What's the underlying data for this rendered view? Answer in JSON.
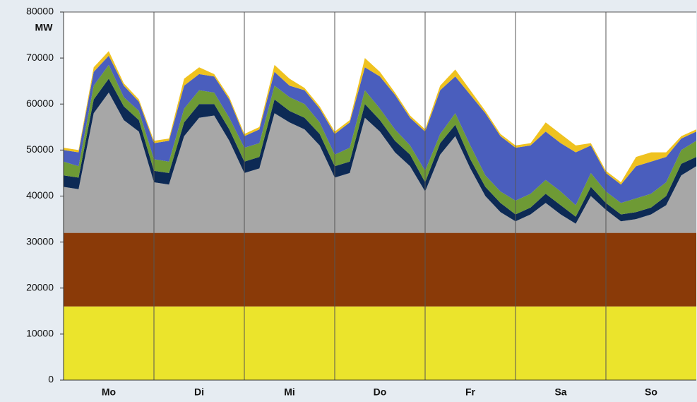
{
  "chart_data": {
    "type": "stacked_area",
    "y_unit": "MW",
    "x": [
      0,
      4,
      8,
      12,
      16,
      20,
      24,
      28,
      32,
      36,
      40,
      44,
      48,
      52,
      56,
      60,
      64,
      68,
      72,
      76,
      80,
      84,
      88,
      92,
      96,
      100,
      104,
      108,
      112,
      116,
      120,
      124,
      128,
      132,
      136,
      140,
      144,
      148,
      152,
      156,
      160,
      164,
      168
    ],
    "xlim": [
      0,
      168
    ],
    "xticks": [
      {
        "value": 12,
        "label": "Mo"
      },
      {
        "value": 36,
        "label": "Di"
      },
      {
        "value": 60,
        "label": "Mi"
      },
      {
        "value": 84,
        "label": "Do"
      },
      {
        "value": 108,
        "label": "Fr"
      },
      {
        "value": 132,
        "label": "Sa"
      },
      {
        "value": 156,
        "label": "So"
      }
    ],
    "ylim": [
      0,
      80000
    ],
    "yticks": [
      0,
      10000,
      20000,
      30000,
      40000,
      50000,
      60000,
      70000,
      80000
    ],
    "grid": true,
    "series": [
      {
        "color": "#ebe42c",
        "values": [
          16000,
          16000,
          16000,
          16000,
          16000,
          16000,
          16000,
          16000,
          16000,
          16000,
          16000,
          16000,
          16000,
          16000,
          16000,
          16000,
          16000,
          16000,
          16000,
          16000,
          16000,
          16000,
          16000,
          16000,
          16000,
          16000,
          16000,
          16000,
          16000,
          16000,
          16000,
          16000,
          16000,
          16000,
          16000,
          16000,
          16000,
          16000,
          16000,
          16000,
          16000,
          16000,
          16000
        ]
      },
      {
        "color": "#8a3a08",
        "values": [
          16000,
          16000,
          16000,
          16000,
          16000,
          16000,
          16000,
          16000,
          16000,
          16000,
          16000,
          16000,
          16000,
          16000,
          16000,
          16000,
          16000,
          16000,
          16000,
          16000,
          16000,
          16000,
          16000,
          16000,
          16000,
          16000,
          16000,
          16000,
          16000,
          16000,
          16000,
          16000,
          16000,
          16000,
          16000,
          16000,
          16000,
          16000,
          16000,
          16000,
          16000,
          16000,
          16000
        ]
      },
      {
        "color": "#a7a7a7",
        "values": [
          10000,
          9500,
          26000,
          30500,
          24500,
          22000,
          11000,
          10500,
          21000,
          25000,
          25500,
          20000,
          13000,
          14000,
          26000,
          24000,
          22500,
          19000,
          12000,
          13000,
          25000,
          22000,
          17500,
          14500,
          9000,
          17000,
          21000,
          14000,
          8000,
          4500,
          2500,
          4000,
          6500,
          4000,
          2000,
          8000,
          5000,
          2500,
          3000,
          4000,
          6000,
          12500,
          14500
        ]
      },
      {
        "color": "#0d2a55",
        "values": [
          2500,
          2500,
          3000,
          3000,
          3000,
          2500,
          2500,
          2500,
          3000,
          3000,
          2500,
          2500,
          2500,
          2500,
          3000,
          2500,
          2500,
          2500,
          2500,
          2500,
          3000,
          2500,
          2500,
          2500,
          2000,
          2500,
          2500,
          2000,
          2000,
          2000,
          1500,
          1500,
          2000,
          2000,
          1500,
          2000,
          1500,
          1500,
          1500,
          1500,
          2000,
          2500,
          2000
        ]
      },
      {
        "color": "#6e9a35",
        "values": [
          3000,
          2500,
          3000,
          3000,
          2000,
          2000,
          2500,
          2500,
          3000,
          3000,
          2500,
          2500,
          3000,
          3000,
          3000,
          3000,
          3000,
          2500,
          2500,
          3000,
          3000,
          2500,
          2500,
          2000,
          2500,
          2000,
          2500,
          3000,
          2500,
          2500,
          3000,
          3000,
          3000,
          3000,
          2500,
          3000,
          2500,
          2500,
          3000,
          3000,
          3000,
          3000,
          3500
        ]
      },
      {
        "color": "#4a5ebd",
        "values": [
          2500,
          3000,
          3000,
          2000,
          2500,
          2000,
          3500,
          4500,
          5000,
          3500,
          3500,
          4000,
          2500,
          3000,
          3000,
          2500,
          3000,
          3000,
          4500,
          5500,
          5000,
          7000,
          7500,
          6000,
          8500,
          9500,
          8000,
          11000,
          13500,
          12000,
          11500,
          10500,
          10500,
          10500,
          11500,
          6000,
          4000,
          4000,
          7000,
          7000,
          5500,
          2500,
          2000
        ]
      },
      {
        "color": "#efc21f",
        "values": [
          500,
          500,
          1000,
          1000,
          500,
          500,
          500,
          500,
          1500,
          1500,
          500,
          500,
          500,
          500,
          1500,
          1500,
          500,
          500,
          500,
          500,
          2000,
          1000,
          500,
          500,
          500,
          1000,
          1500,
          1000,
          500,
          500,
          500,
          500,
          2000,
          2000,
          1500,
          500,
          500,
          500,
          2000,
          2000,
          1000,
          500,
          500
        ]
      }
    ]
  }
}
